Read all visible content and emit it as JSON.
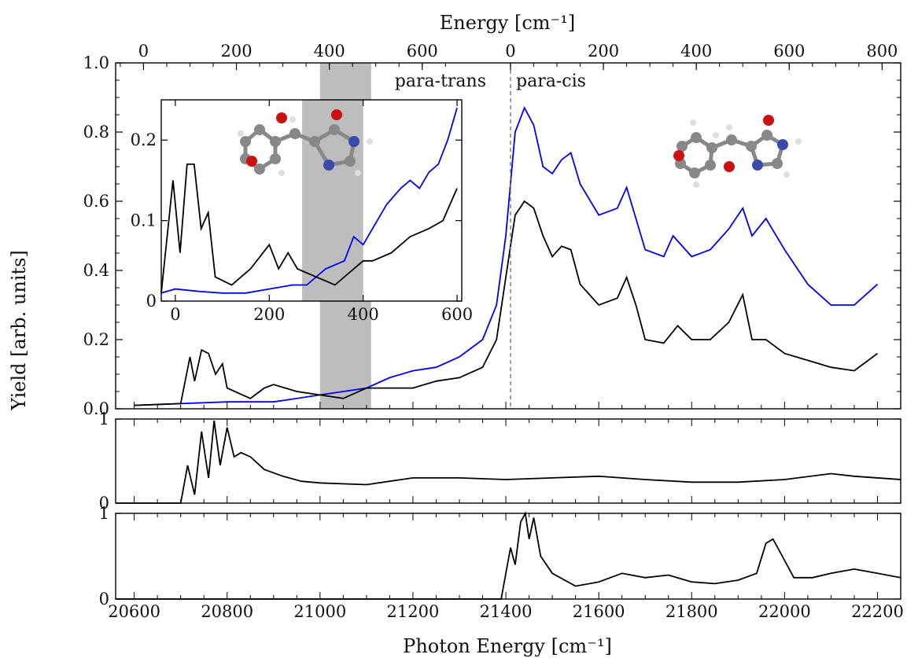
{
  "chart_data": [
    {
      "type": "line",
      "panel": "main",
      "xlabel": "Photon Energy [cm⁻¹]",
      "ylabel": "Yield [arb. units]",
      "top_axis": {
        "label": "Energy [cm⁻¹]",
        "ticks_trans": [
          "0",
          "200",
          "400",
          "600"
        ],
        "ticks_cis": [
          "0",
          "200",
          "400",
          "600",
          "800"
        ],
        "trans_origin_photon_energy": 20620,
        "cis_origin_photon_energy": 21410
      },
      "xlim": [
        20560,
        22250
      ],
      "ylim": [
        0,
        1.0
      ],
      "x_ticks": [
        20600,
        20800,
        21000,
        21200,
        21400,
        21600,
        21800,
        22000,
        22200
      ],
      "y_ticks": [
        "0.0",
        "0.2",
        "0.4",
        "0.6",
        "0.8",
        "1.0"
      ],
      "region_labels": {
        "trans": "para-trans",
        "cis": "para-cis"
      },
      "divider_x": 21410,
      "shaded_region": [
        21000,
        21110
      ],
      "series": [
        {
          "color": "#0000ee",
          "points": [
            [
              20600,
              0.01
            ],
            [
              20700,
              0.015
            ],
            [
              20800,
              0.02
            ],
            [
              20900,
              0.02
            ],
            [
              21000,
              0.04
            ],
            [
              21050,
              0.05
            ],
            [
              21100,
              0.06
            ],
            [
              21150,
              0.09
            ],
            [
              21200,
              0.11
            ],
            [
              21250,
              0.12
            ],
            [
              21300,
              0.15
            ],
            [
              21350,
              0.2
            ],
            [
              21380,
              0.3
            ],
            [
              21400,
              0.5
            ],
            [
              21420,
              0.8
            ],
            [
              21440,
              0.87
            ],
            [
              21460,
              0.82
            ],
            [
              21480,
              0.7
            ],
            [
              21500,
              0.68
            ],
            [
              21520,
              0.72
            ],
            [
              21540,
              0.74
            ],
            [
              21560,
              0.65
            ],
            [
              21600,
              0.56
            ],
            [
              21640,
              0.58
            ],
            [
              21660,
              0.64
            ],
            [
              21680,
              0.55
            ],
            [
              21700,
              0.46
            ],
            [
              21740,
              0.44
            ],
            [
              21760,
              0.5
            ],
            [
              21800,
              0.44
            ],
            [
              21840,
              0.46
            ],
            [
              21880,
              0.52
            ],
            [
              21910,
              0.58
            ],
            [
              21930,
              0.5
            ],
            [
              21960,
              0.55
            ],
            [
              22000,
              0.46
            ],
            [
              22050,
              0.36
            ],
            [
              22100,
              0.3
            ],
            [
              22150,
              0.3
            ],
            [
              22200,
              0.36
            ]
          ]
        },
        {
          "color": "#000000",
          "points": [
            [
              20600,
              0.01
            ],
            [
              20700,
              0.015
            ],
            [
              20720,
              0.15
            ],
            [
              20730,
              0.08
            ],
            [
              20745,
              0.17
            ],
            [
              20760,
              0.16
            ],
            [
              20775,
              0.1
            ],
            [
              20790,
              0.13
            ],
            [
              20800,
              0.06
            ],
            [
              20850,
              0.03
            ],
            [
              20880,
              0.06
            ],
            [
              20900,
              0.07
            ],
            [
              20950,
              0.05
            ],
            [
              21000,
              0.04
            ],
            [
              21050,
              0.03
            ],
            [
              21100,
              0.06
            ],
            [
              21150,
              0.06
            ],
            [
              21200,
              0.06
            ],
            [
              21250,
              0.08
            ],
            [
              21300,
              0.09
            ],
            [
              21350,
              0.12
            ],
            [
              21380,
              0.2
            ],
            [
              21400,
              0.38
            ],
            [
              21420,
              0.56
            ],
            [
              21440,
              0.6
            ],
            [
              21460,
              0.58
            ],
            [
              21480,
              0.5
            ],
            [
              21500,
              0.44
            ],
            [
              21520,
              0.47
            ],
            [
              21540,
              0.46
            ],
            [
              21560,
              0.36
            ],
            [
              21600,
              0.3
            ],
            [
              21640,
              0.32
            ],
            [
              21660,
              0.38
            ],
            [
              21680,
              0.3
            ],
            [
              21700,
              0.2
            ],
            [
              21740,
              0.19
            ],
            [
              21770,
              0.24
            ],
            [
              21800,
              0.2
            ],
            [
              21840,
              0.2
            ],
            [
              21880,
              0.25
            ],
            [
              21910,
              0.33
            ],
            [
              21930,
              0.2
            ],
            [
              21960,
              0.2
            ],
            [
              22000,
              0.16
            ],
            [
              22050,
              0.14
            ],
            [
              22100,
              0.12
            ],
            [
              22150,
              0.11
            ],
            [
              22200,
              0.16
            ]
          ]
        }
      ]
    },
    {
      "type": "line",
      "panel": "inset",
      "xlim": [
        -30,
        610
      ],
      "ylim": [
        0,
        0.25
      ],
      "x_ticks": [
        "0",
        "200",
        "400",
        "600"
      ],
      "y_ticks": [
        "0",
        "0.1",
        "0.2"
      ],
      "shaded_region": [
        270,
        400
      ],
      "series": [
        {
          "color": "#0000ee",
          "points": [
            [
              -30,
              0.01
            ],
            [
              0,
              0.015
            ],
            [
              50,
              0.012
            ],
            [
              100,
              0.01
            ],
            [
              150,
              0.01
            ],
            [
              200,
              0.015
            ],
            [
              250,
              0.02
            ],
            [
              280,
              0.02
            ],
            [
              320,
              0.04
            ],
            [
              360,
              0.05
            ],
            [
              380,
              0.08
            ],
            [
              400,
              0.07
            ],
            [
              420,
              0.09
            ],
            [
              450,
              0.12
            ],
            [
              480,
              0.14
            ],
            [
              500,
              0.15
            ],
            [
              520,
              0.14
            ],
            [
              540,
              0.16
            ],
            [
              560,
              0.17
            ],
            [
              580,
              0.2
            ],
            [
              600,
              0.24
            ]
          ]
        },
        {
          "color": "#000000",
          "points": [
            [
              -30,
              0.01
            ],
            [
              -5,
              0.15
            ],
            [
              10,
              0.06
            ],
            [
              25,
              0.17
            ],
            [
              40,
              0.17
            ],
            [
              55,
              0.09
            ],
            [
              70,
              0.11
            ],
            [
              85,
              0.03
            ],
            [
              120,
              0.02
            ],
            [
              160,
              0.04
            ],
            [
              200,
              0.07
            ],
            [
              220,
              0.04
            ],
            [
              240,
              0.06
            ],
            [
              260,
              0.04
            ],
            [
              300,
              0.03
            ],
            [
              340,
              0.02
            ],
            [
              380,
              0.04
            ],
            [
              400,
              0.05
            ],
            [
              420,
              0.05
            ],
            [
              460,
              0.06
            ],
            [
              500,
              0.08
            ],
            [
              540,
              0.09
            ],
            [
              570,
              0.1
            ],
            [
              600,
              0.14
            ]
          ]
        }
      ]
    },
    {
      "type": "line",
      "panel": "middle",
      "xlim": [
        20560,
        22250
      ],
      "ylim": [
        0,
        1.0
      ],
      "y_ticks": [
        "0",
        "1"
      ],
      "series": [
        {
          "color": "#000000",
          "points": [
            [
              20560,
              0.0
            ],
            [
              20700,
              0.0
            ],
            [
              20715,
              0.45
            ],
            [
              20730,
              0.1
            ],
            [
              20745,
              0.85
            ],
            [
              20760,
              0.3
            ],
            [
              20772,
              0.98
            ],
            [
              20785,
              0.45
            ],
            [
              20800,
              0.9
            ],
            [
              20815,
              0.55
            ],
            [
              20830,
              0.6
            ],
            [
              20850,
              0.55
            ],
            [
              20880,
              0.4
            ],
            [
              20920,
              0.32
            ],
            [
              20960,
              0.26
            ],
            [
              21000,
              0.24
            ],
            [
              21100,
              0.22
            ],
            [
              21200,
              0.3
            ],
            [
              21300,
              0.3
            ],
            [
              21400,
              0.28
            ],
            [
              21500,
              0.3
            ],
            [
              21600,
              0.32
            ],
            [
              21700,
              0.28
            ],
            [
              21800,
              0.25
            ],
            [
              21900,
              0.25
            ],
            [
              22000,
              0.28
            ],
            [
              22100,
              0.35
            ],
            [
              22150,
              0.32
            ],
            [
              22250,
              0.28
            ]
          ]
        }
      ]
    },
    {
      "type": "line",
      "panel": "bottom",
      "xlim": [
        20560,
        22250
      ],
      "ylim": [
        0,
        1.0
      ],
      "y_ticks": [
        "0",
        "1"
      ],
      "series": [
        {
          "color": "#000000",
          "points": [
            [
              20560,
              0.0
            ],
            [
              21390,
              0.0
            ],
            [
              21410,
              0.6
            ],
            [
              21420,
              0.4
            ],
            [
              21432,
              0.9
            ],
            [
              21442,
              1.0
            ],
            [
              21450,
              0.7
            ],
            [
              21460,
              0.95
            ],
            [
              21475,
              0.5
            ],
            [
              21500,
              0.3
            ],
            [
              21550,
              0.15
            ],
            [
              21600,
              0.2
            ],
            [
              21650,
              0.3
            ],
            [
              21700,
              0.25
            ],
            [
              21750,
              0.28
            ],
            [
              21800,
              0.2
            ],
            [
              21850,
              0.18
            ],
            [
              21900,
              0.22
            ],
            [
              21940,
              0.3
            ],
            [
              21960,
              0.65
            ],
            [
              21975,
              0.7
            ],
            [
              21990,
              0.55
            ],
            [
              22020,
              0.25
            ],
            [
              22060,
              0.25
            ],
            [
              22100,
              0.3
            ],
            [
              22150,
              0.35
            ],
            [
              22200,
              0.3
            ],
            [
              22250,
              0.25
            ]
          ]
        }
      ]
    }
  ]
}
